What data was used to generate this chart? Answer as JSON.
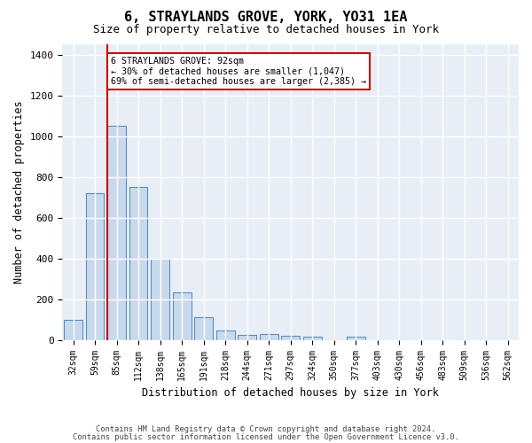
{
  "title": "6, STRAYLANDS GROVE, YORK, YO31 1EA",
  "subtitle": "Size of property relative to detached houses in York",
  "xlabel": "Distribution of detached houses by size in York",
  "ylabel": "Number of detached properties",
  "bar_color": "#c9d9ec",
  "bar_edge_color": "#5a8fc0",
  "background_color": "#e8eef5",
  "grid_color": "#ffffff",
  "bins": [
    "32sqm",
    "59sqm",
    "85sqm",
    "112sqm",
    "138sqm",
    "165sqm",
    "191sqm",
    "218sqm",
    "244sqm",
    "271sqm",
    "297sqm",
    "324sqm",
    "350sqm",
    "377sqm",
    "403sqm",
    "430sqm",
    "456sqm",
    "483sqm",
    "509sqm",
    "536sqm",
    "562sqm"
  ],
  "values": [
    100,
    720,
    1050,
    750,
    400,
    235,
    110,
    45,
    25,
    28,
    22,
    15,
    0,
    18,
    0,
    0,
    0,
    0,
    0,
    0,
    0
  ],
  "ylim": [
    0,
    1450
  ],
  "yticks": [
    0,
    200,
    400,
    600,
    800,
    1000,
    1200,
    1400
  ],
  "red_line_x": 1.575,
  "annotation_text": "6 STRAYLANDS GROVE: 92sqm\n← 30% of detached houses are smaller (1,047)\n69% of semi-detached houses are larger (2,385) →",
  "annotation_box_color": "#ffffff",
  "annotation_border_color": "#cc0000",
  "vline_color": "#cc0000",
  "footer_line1": "Contains HM Land Registry data © Crown copyright and database right 2024.",
  "footer_line2": "Contains public sector information licensed under the Open Government Licence v3.0."
}
